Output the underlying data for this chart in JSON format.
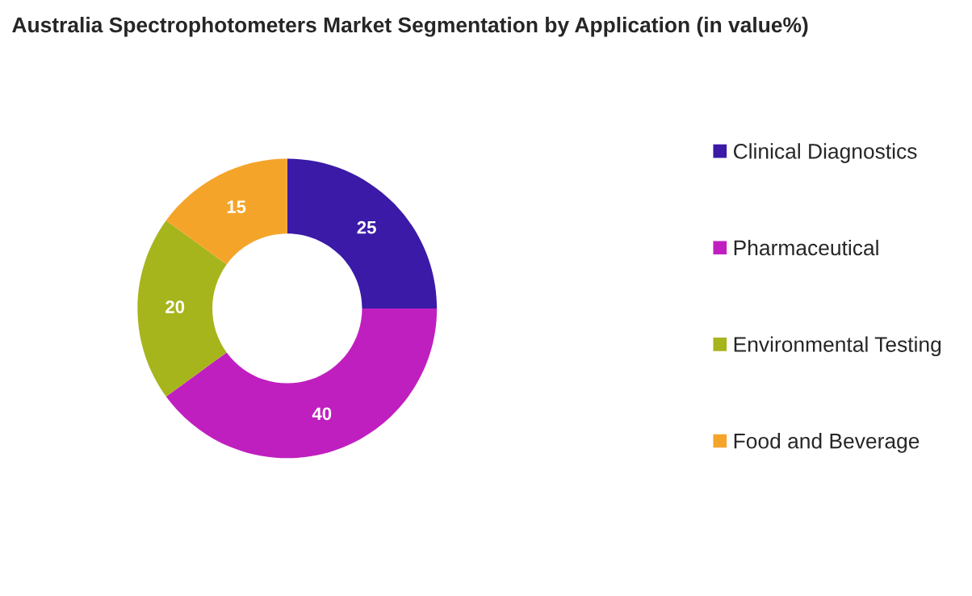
{
  "chart_data": {
    "type": "donut",
    "title": "Australia Spectrophotometers Market Segmentation by Application (in value%)",
    "categories": [
      "Clinical Diagnostics",
      "Pharmaceutical",
      "Environmental Testing",
      "Food and Beverage"
    ],
    "values": [
      25,
      40,
      20,
      15
    ],
    "colors": [
      "#3a1aa6",
      "#c01fc0",
      "#a6b51c",
      "#f5a42a"
    ],
    "data_labels": true,
    "legend": "right"
  }
}
